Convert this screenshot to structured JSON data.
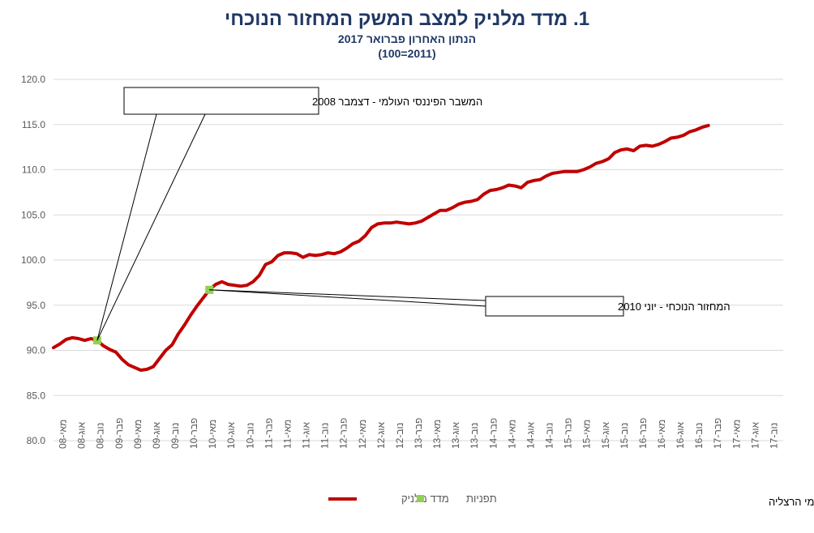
{
  "title": "1. מדד מלניק למצב המשק המחזור הנוכחי",
  "subtitle": "הנתון האחרון פברואר 2017",
  "subtitle2": "(100=2011)",
  "credit": "פרופ' רפי מלניק, המרכז הבינתחומי הרצליה",
  "legend": {
    "series": "מדד מלניק",
    "markers": "תפניות"
  },
  "colors": {
    "line": "#c00000",
    "marker": "#92d050",
    "title": "#1f3864",
    "grid": "#d9d9d9"
  },
  "chart_data": {
    "type": "line",
    "title": "1. מדד מלניק למצב המשק המחזור הנוכחי",
    "subtitle": "הנתון האחרון פברואר 2017 (100=2011)",
    "ylim": [
      80,
      120
    ],
    "yticks": [
      "80.0",
      "85.0",
      "90.0",
      "95.0",
      "100.0",
      "105.0",
      "110.0",
      "115.0",
      "120.0"
    ],
    "xticks": [
      "מאי-08",
      "אוג-08",
      "נוב-08",
      "פבר-09",
      "מאי-09",
      "אוג-09",
      "נוב-09",
      "פבר-10",
      "מאי-10",
      "אוג-10",
      "נוב-10",
      "פבר-11",
      "מאי-11",
      "אוג-11",
      "נוב-11",
      "פבר-12",
      "מאי-12",
      "אוג-12",
      "נוב-12",
      "פבר-13",
      "מאי-13",
      "אוג-13",
      "נוב-13",
      "פבר-14",
      "מאי-14",
      "אוג-14",
      "נוב-14",
      "פבר-15",
      "מאי-15",
      "אוג-15",
      "נוב-15",
      "פבר-16",
      "מאי-16",
      "אוג-16",
      "נוב-16",
      "פבר-17",
      "מאי-17",
      "אוג-17",
      "נוב-17"
    ],
    "series": [
      {
        "name": "מדד מלניק",
        "values": [
          90.3,
          90.7,
          91.2,
          91.4,
          91.3,
          91.1,
          91.3,
          91.1,
          90.5,
          90.1,
          89.8,
          89.0,
          88.4,
          88.1,
          87.8,
          87.9,
          88.2,
          89.1,
          90.0,
          90.6,
          91.8,
          92.8,
          93.9,
          94.9,
          95.8,
          96.7,
          97.3,
          97.6,
          97.3,
          97.2,
          97.1,
          97.2,
          97.6,
          98.3,
          99.5,
          99.8,
          100.5,
          100.8,
          100.8,
          100.7,
          100.3,
          100.6,
          100.5,
          100.6,
          100.8,
          100.7,
          100.9,
          101.3,
          101.8,
          102.1,
          102.7,
          103.6,
          104.0,
          104.1,
          104.1,
          104.2,
          104.1,
          104.0,
          104.1,
          104.3,
          104.7,
          105.1,
          105.5,
          105.5,
          105.8,
          106.2,
          106.4,
          106.5,
          106.7,
          107.3,
          107.7,
          107.8,
          108.0,
          108.3,
          108.2,
          108.0,
          108.6,
          108.8,
          108.9,
          109.3,
          109.6,
          109.7,
          109.8,
          109.8,
          109.8,
          110.0,
          110.3,
          110.7,
          110.9,
          111.2,
          111.9,
          112.2,
          112.3,
          112.1,
          112.6,
          112.7,
          112.6,
          112.8,
          113.1,
          113.5,
          113.6,
          113.8,
          114.2,
          114.4,
          114.7,
          114.9
        ]
      }
    ],
    "turning_points": [
      {
        "x": "דצמבר 2008",
        "index": 7,
        "value": 91.1
      },
      {
        "x": "יוני 2010",
        "index": 25,
        "value": 96.7
      }
    ],
    "annotations": [
      {
        "text": "המשבר הפיננסי העולמי - דצמבר 2008"
      },
      {
        "text": "המחזור הנוכחי - יוני 2010"
      }
    ],
    "legend_position": "bottom",
    "grid": true
  }
}
